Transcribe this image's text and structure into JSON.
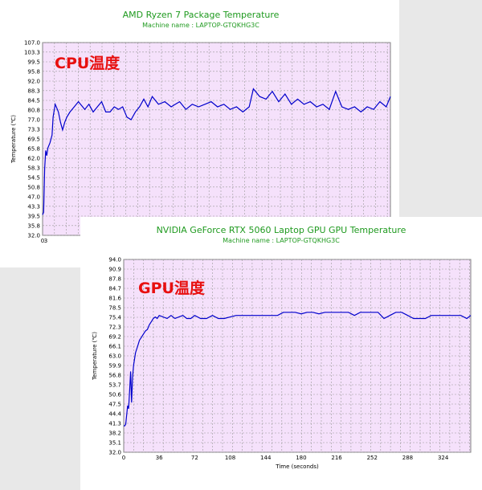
{
  "colors": {
    "plot_bg": "#f5e1fb",
    "grid": "#999999",
    "series": "#0000cc",
    "title": "#1f9a1f",
    "overlay": "#e81010"
  },
  "chart_data": [
    {
      "type": "line",
      "title": "AMD Ryzen 7 Package Temperature",
      "subtitle": "Machine name : LAPTOP-GTQKHG3C",
      "overlay_label": "CPU温度",
      "ylabel": "Temperature (℃)",
      "xlabel": "",
      "ylim": [
        32.0,
        107.0
      ],
      "yticks": [
        "107.0",
        "103.3",
        "99.5",
        "95.8",
        "92.0",
        "88.3",
        "84.5",
        "80.8",
        "77.0",
        "73.3",
        "69.5",
        "65.8",
        "62.0",
        "58.3",
        "54.5",
        "50.8",
        "47.0",
        "43.3",
        "39.5",
        "35.8",
        "32.0"
      ],
      "xticks": [
        "0",
        "3"
      ],
      "xlim": [
        0,
        330
      ],
      "grid": true,
      "series": [
        {
          "x": [
            0,
            1,
            2,
            3,
            4,
            5,
            7,
            9,
            10,
            12,
            13,
            15,
            17,
            19,
            21,
            23,
            26,
            30,
            34,
            38,
            40,
            44,
            48,
            52,
            56,
            60,
            64,
            68,
            72,
            76,
            80,
            84,
            88,
            92,
            96,
            100,
            104,
            110,
            116,
            122,
            126,
            130,
            136,
            142,
            148,
            154,
            160,
            166,
            172,
            178,
            184,
            190,
            196,
            200,
            206,
            212,
            218,
            224,
            230,
            236,
            242,
            248,
            254,
            260,
            266,
            272,
            278,
            284,
            290,
            296,
            302,
            308,
            314,
            320,
            326,
            330
          ],
          "y": [
            40,
            41,
            58,
            65,
            63,
            66,
            68,
            71,
            78,
            83,
            82,
            80,
            76,
            73,
            76,
            78,
            80,
            82,
            84,
            82,
            81,
            83,
            80,
            82,
            84,
            80,
            80,
            82,
            81,
            82,
            78,
            77,
            80,
            82,
            85,
            82,
            86,
            83,
            84,
            82,
            83,
            84,
            81,
            83,
            82,
            83,
            84,
            82,
            83,
            81,
            82,
            80,
            82,
            89,
            86,
            85,
            88,
            84,
            87,
            83,
            85,
            83,
            84,
            82,
            83,
            81,
            88,
            82,
            81,
            82,
            80,
            82,
            81,
            84,
            82,
            86
          ]
        }
      ]
    },
    {
      "type": "line",
      "title": "NVIDIA GeForce RTX 5060 Laptop GPU GPU Temperature",
      "subtitle": "Machine name : LAPTOP-GTQKHG3C",
      "overlay_label": "GPU温度",
      "ylabel": "Temperature (℃)",
      "xlabel": "Time (seconds)",
      "ylim": [
        32.0,
        94.0
      ],
      "yticks": [
        "94.0",
        "90.9",
        "87.8",
        "84.7",
        "81.6",
        "78.5",
        "75.4",
        "72.3",
        "69.2",
        "66.1",
        "63.0",
        "59.9",
        "56.8",
        "53.7",
        "50.6",
        "47.5",
        "44.4",
        "41.3",
        "38.2",
        "35.1",
        "32.0"
      ],
      "xticks": [
        "0",
        "36",
        "72",
        "108",
        "144",
        "180",
        "216",
        "252",
        "288",
        "324"
      ],
      "xlim": [
        0,
        352
      ],
      "grid": true,
      "series": [
        {
          "x": [
            0,
            1,
            2,
            3,
            4,
            5,
            6,
            7,
            8,
            9,
            10,
            11,
            12,
            14,
            16,
            18,
            20,
            22,
            24,
            26,
            28,
            30,
            32,
            34,
            36,
            40,
            44,
            48,
            52,
            56,
            60,
            64,
            68,
            72,
            78,
            84,
            90,
            96,
            102,
            108,
            114,
            120,
            126,
            132,
            138,
            144,
            150,
            156,
            162,
            168,
            174,
            180,
            186,
            192,
            198,
            204,
            210,
            216,
            222,
            228,
            234,
            240,
            246,
            252,
            258,
            264,
            270,
            276,
            282,
            288,
            294,
            300,
            306,
            312,
            318,
            324,
            330,
            336,
            342,
            348,
            352
          ],
          "y": [
            40.5,
            40.5,
            41,
            44,
            47,
            46,
            52,
            58,
            48,
            56,
            60,
            62,
            64,
            66,
            68,
            69,
            70,
            71,
            71.5,
            73,
            74,
            75,
            75.5,
            75,
            76,
            75.5,
            75,
            76,
            75,
            75.5,
            76,
            75,
            75,
            76,
            75,
            75,
            76,
            75,
            75,
            75.5,
            76,
            76,
            76,
            76,
            76,
            76,
            76,
            76,
            77,
            77,
            77,
            76.5,
            77,
            77,
            76.5,
            77,
            77,
            77,
            77,
            77,
            76,
            77,
            77,
            77,
            77,
            75,
            76,
            77,
            77,
            76,
            75,
            75,
            75,
            76,
            76,
            76,
            76,
            76,
            76,
            75,
            76
          ]
        }
      ]
    }
  ]
}
